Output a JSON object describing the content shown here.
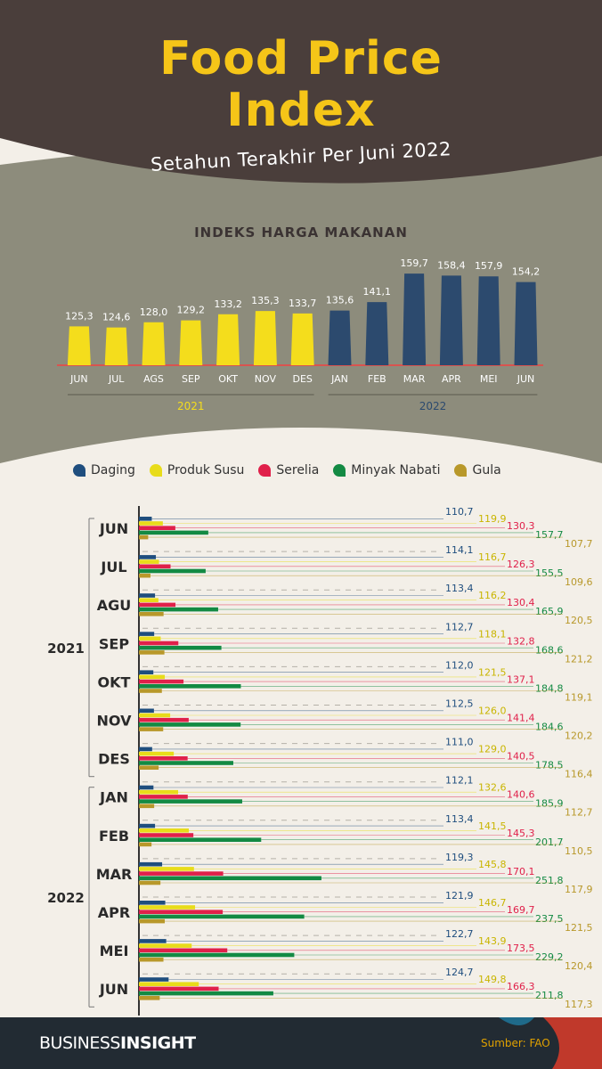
{
  "header": {
    "title_line1": "Food Price",
    "title_line2": "Index",
    "subtitle": "Setahun Terakhir Per Juni 2022"
  },
  "colors": {
    "header_bg": "#4a3e3b",
    "mid_bg": "#8d8c7c",
    "bottom_bg": "#f3efe8",
    "footer_bg": "#222b33",
    "yellow": "#f4dd1c",
    "navy": "#2c4a6e",
    "daging": "#1f4e7e",
    "produk_susu": "#e8dc1a",
    "serelia": "#e0204a",
    "minyak_nabati": "#138a43",
    "gula": "#b8982a",
    "accent_line": "#d9534f"
  },
  "chart_data": [
    {
      "type": "bar",
      "title": "INDEKS HARGA MAKANAN",
      "categories": [
        "JUN",
        "JUL",
        "AGS",
        "SEP",
        "OKT",
        "NOV",
        "DES",
        "JAN",
        "FEB",
        "MAR",
        "APR",
        "MEI",
        "JUN"
      ],
      "values": [
        125.3,
        124.6,
        128.0,
        129.2,
        133.2,
        135.3,
        133.7,
        135.6,
        141.1,
        159.7,
        158.4,
        157.9,
        154.2
      ],
      "value_labels": [
        "125,3",
        "124,6",
        "128,0",
        "129,2",
        "133,2",
        "135,3",
        "133,7",
        "135,6",
        "141,1",
        "159,7",
        "158,4",
        "157,9",
        "154,2"
      ],
      "groups": [
        {
          "label": "2021",
          "count": 7,
          "color": "#f4dd1c"
        },
        {
          "label": "2022",
          "count": 6,
          "color": "#2c4a6e"
        }
      ],
      "ylim": [
        100,
        165
      ]
    },
    {
      "type": "bar",
      "orientation": "horizontal",
      "categories": [
        "JUN",
        "JUL",
        "AGU",
        "SEP",
        "OKT",
        "NOV",
        "DES",
        "JAN",
        "FEB",
        "MAR",
        "APR",
        "MEI",
        "JUN"
      ],
      "year_groups": [
        {
          "label": "2021",
          "count": 7
        },
        {
          "label": "2022",
          "count": 6
        }
      ],
      "series": [
        {
          "name": "Daging",
          "color": "#1f4e7e",
          "values": [
            110.7,
            114.1,
            113.4,
            112.7,
            112.0,
            112.5,
            111.0,
            112.1,
            113.4,
            119.3,
            121.9,
            122.7,
            124.7
          ],
          "labels": [
            "110,7",
            "114,1",
            "113,4",
            "112,7",
            "112,0",
            "112,5",
            "111,0",
            "112,1",
            "113,4",
            "119,3",
            "121,9",
            "122,7",
            "124,7"
          ]
        },
        {
          "name": "Produk Susu",
          "color": "#e8dc1a",
          "values": [
            119.9,
            116.7,
            116.2,
            118.1,
            121.5,
            126.0,
            129.0,
            132.6,
            141.5,
            145.8,
            146.7,
            143.9,
            149.8
          ],
          "labels": [
            "119,9",
            "116,7",
            "116,2",
            "118,1",
            "121,5",
            "126,0",
            "129,0",
            "132,6",
            "141,5",
            "145,8",
            "146,7",
            "143,9",
            "149,8"
          ]
        },
        {
          "name": "Serelia",
          "color": "#e0204a",
          "values": [
            130.3,
            126.3,
            130.4,
            132.8,
            137.1,
            141.4,
            140.5,
            140.6,
            145.3,
            170.1,
            169.7,
            173.5,
            166.3
          ],
          "labels": [
            "130,3",
            "126,3",
            "130,4",
            "132,8",
            "137,1",
            "141,4",
            "140,5",
            "140,6",
            "145,3",
            "170,1",
            "169,7",
            "173,5",
            "166,3"
          ]
        },
        {
          "name": "Minyak Nabati",
          "color": "#138a43",
          "values": [
            157.7,
            155.5,
            165.9,
            168.6,
            184.8,
            184.6,
            178.5,
            185.9,
            201.7,
            251.8,
            237.5,
            229.2,
            211.8
          ],
          "labels": [
            "157,7",
            "155,5",
            "165,9",
            "168,6",
            "184,8",
            "184,6",
            "178,5",
            "185,9",
            "201,7",
            "251,8",
            "237,5",
            "229,2",
            "211,8"
          ]
        },
        {
          "name": "Gula",
          "color": "#b8982a",
          "values": [
            107.7,
            109.6,
            120.5,
            121.2,
            119.1,
            120.2,
            116.4,
            112.7,
            110.5,
            117.9,
            121.5,
            120.4,
            117.3
          ],
          "labels": [
            "107,7",
            "109,6",
            "120,5",
            "121,2",
            "119,1",
            "120,2",
            "116,4",
            "112,7",
            "110,5",
            "117,9",
            "121,5",
            "120,4",
            "117,3"
          ]
        }
      ],
      "legend": "top"
    }
  ],
  "footer": {
    "brand_light": "BUSINESS",
    "brand_bold": "INSIGHT",
    "source": "Sumber: FAO"
  }
}
